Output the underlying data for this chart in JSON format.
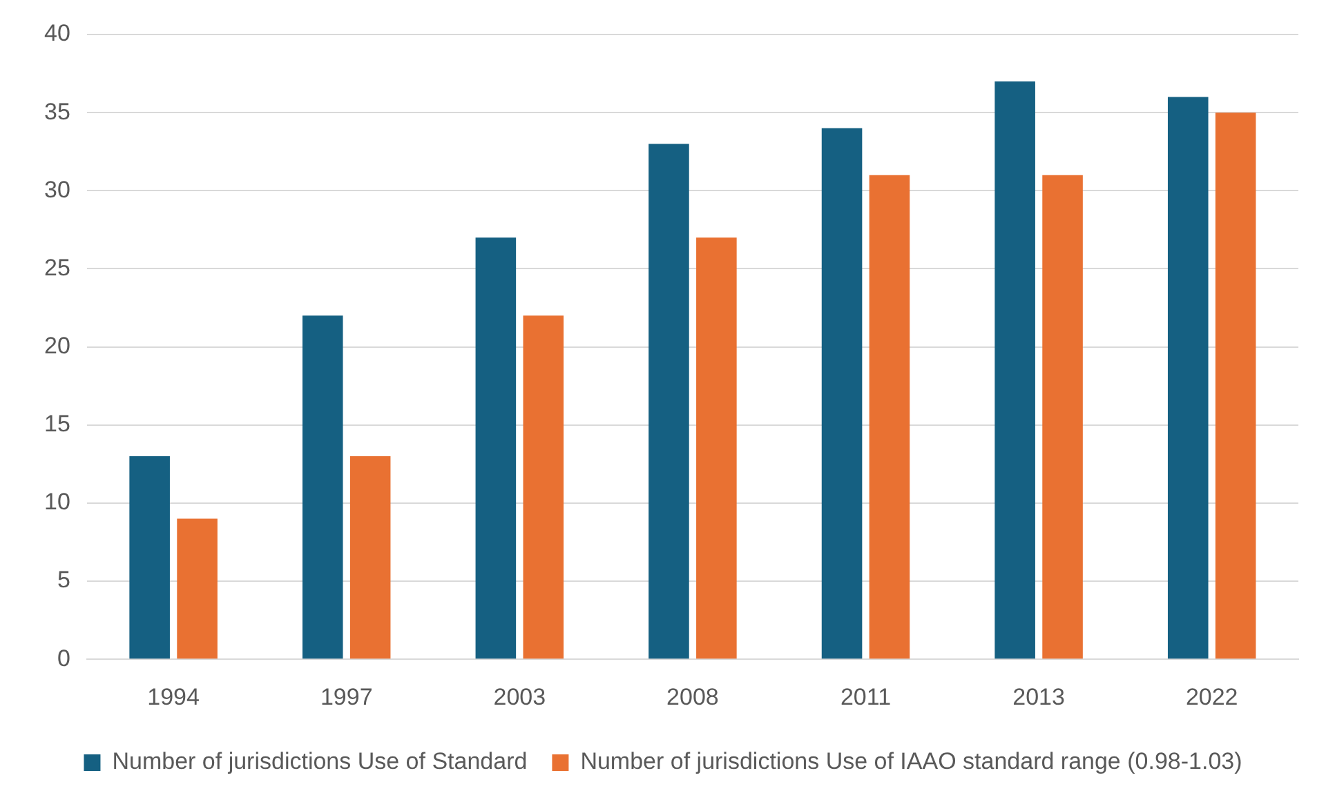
{
  "chart_data": {
    "type": "bar",
    "categories": [
      "1994",
      "1997",
      "2003",
      "2008",
      "2011",
      "2013",
      "2022"
    ],
    "series": [
      {
        "name": "Number of jurisdictions Use of Standard",
        "color": "#156082",
        "values": [
          13,
          22,
          27,
          33,
          34,
          37,
          36
        ]
      },
      {
        "name": "Number of jurisdictions Use of IAAO standard range (0.98-1.03)",
        "color": "#e97132",
        "values": [
          9,
          13,
          22,
          27,
          31,
          31,
          35
        ]
      }
    ],
    "ylim": [
      0,
      40
    ],
    "yticks": [
      0,
      5,
      10,
      15,
      20,
      25,
      30,
      35,
      40
    ],
    "grid": "y",
    "legend": "bottom"
  }
}
